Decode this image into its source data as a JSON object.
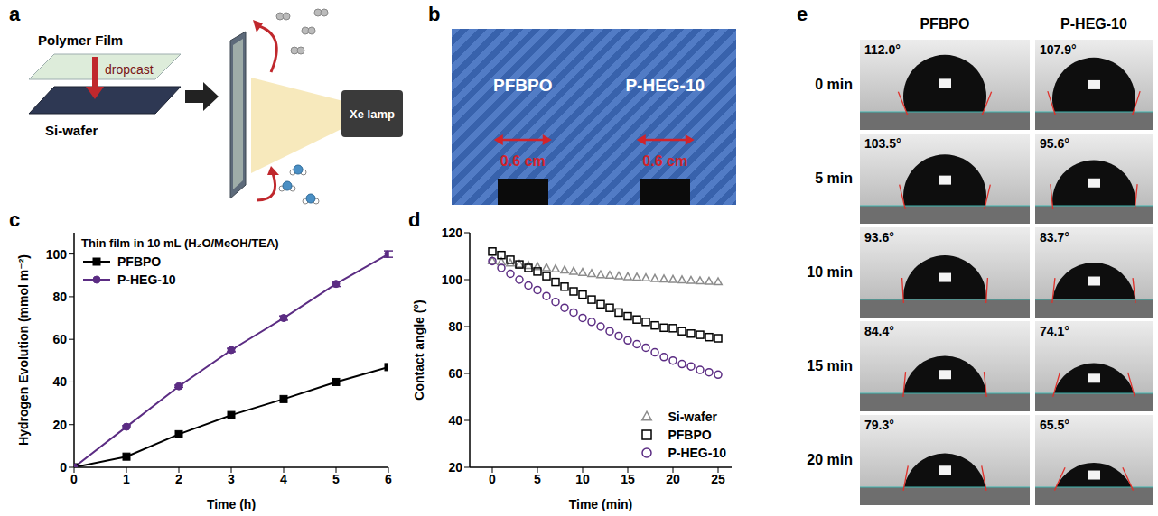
{
  "panel_a": {
    "label": "a",
    "film": "Polymer Film",
    "step": "dropcast",
    "substrate": "Si-wafer",
    "lamp": "Xe lamp"
  },
  "panel_b": {
    "label": "b",
    "samples": [
      {
        "name": "PFBPO",
        "scale_bar": "0.6 cm"
      },
      {
        "name": "P-HEG-10",
        "scale_bar": "0.6 cm"
      }
    ]
  },
  "chart_data": [
    {
      "panel": "c",
      "type": "line",
      "legend_title": "Thin film in 10 mL (H₂O/MeOH/TEA)",
      "x_label": "Time (h)",
      "y_label": "Hydrogen Evolution (mmol m⁻²)",
      "x": [
        0,
        1,
        2,
        3,
        4,
        5,
        6
      ],
      "series": [
        {
          "name": "PFBPO",
          "color": "#000000",
          "marker": "square",
          "values": [
            0,
            5,
            15.5,
            24.5,
            32,
            40,
            47
          ]
        },
        {
          "name": "P-HEG-10",
          "color": "#5b2c83",
          "marker": "circle",
          "values": [
            0,
            19,
            38,
            55,
            70,
            86,
            100
          ],
          "errors": [
            0,
            0.5,
            0.5,
            0.8,
            1,
            1.2,
            1.5
          ]
        }
      ],
      "xlim": [
        0,
        6
      ],
      "xticks": [
        0,
        1,
        2,
        3,
        4,
        5,
        6
      ],
      "ylim": [
        0,
        110
      ],
      "yticks": [
        0,
        20,
        40,
        60,
        80,
        100
      ],
      "grid": false,
      "legend": "upper left"
    },
    {
      "panel": "d",
      "type": "scatter",
      "x_label": "Time (min)",
      "y_label": "Contact angle (°)",
      "x": [
        0,
        1,
        2,
        3,
        4,
        5,
        6,
        7,
        8,
        9,
        10,
        11,
        12,
        13,
        14,
        15,
        16,
        17,
        18,
        19,
        20,
        21,
        22,
        23,
        24,
        25
      ],
      "series": [
        {
          "name": "Si-wafer",
          "color": "#8c8c8c",
          "marker": "triangle_open",
          "values": [
            108,
            107.5,
            107,
            106.5,
            106,
            105.5,
            105,
            104.5,
            104,
            103.5,
            103,
            102.5,
            102,
            101.8,
            101.5,
            101.2,
            101,
            100.7,
            100.4,
            100.2,
            100,
            99.8,
            99.6,
            99.4,
            99.2,
            99
          ]
        },
        {
          "name": "PFBPO",
          "color": "#000000",
          "marker": "square_open",
          "values": [
            112,
            110.5,
            108.5,
            106.5,
            105,
            103.5,
            101.5,
            99,
            97,
            95,
            93.6,
            91.5,
            89.5,
            88,
            86,
            84.4,
            83,
            82,
            80.5,
            79.5,
            79.3,
            78,
            77,
            76.5,
            75.5,
            75
          ]
        },
        {
          "name": "P-HEG-10",
          "color": "#5b2c83",
          "marker": "circle_open",
          "values": [
            107.9,
            105,
            102.5,
            100,
            97.5,
            95.6,
            93,
            90.5,
            88,
            86,
            83.7,
            82,
            80,
            78,
            76,
            74.1,
            72.5,
            71,
            69,
            67,
            65.5,
            64,
            63,
            61.5,
            60.5,
            59.5
          ]
        }
      ],
      "xlim": [
        -2.5,
        26.5
      ],
      "xticks": [
        0,
        5,
        10,
        15,
        20,
        25
      ],
      "ylim": [
        20,
        120
      ],
      "yticks": [
        20,
        40,
        60,
        80,
        100,
        120
      ],
      "grid": false,
      "legend": "lower right"
    }
  ],
  "panel_e": {
    "label": "e",
    "columns": [
      "PFBPO",
      "P-HEG-10"
    ],
    "rows": [
      {
        "time": "0 min",
        "angles": [
          {
            "value": 112.0,
            "label": "112.0°"
          },
          {
            "value": 107.9,
            "label": "107.9°"
          }
        ]
      },
      {
        "time": "5 min",
        "angles": [
          {
            "value": 103.5,
            "label": "103.5°"
          },
          {
            "value": 95.6,
            "label": "95.6°"
          }
        ]
      },
      {
        "time": "10 min",
        "angles": [
          {
            "value": 93.6,
            "label": "93.6°"
          },
          {
            "value": 83.7,
            "label": "83.7°"
          }
        ]
      },
      {
        "time": "15 min",
        "angles": [
          {
            "value": 84.4,
            "label": "84.4°"
          },
          {
            "value": 74.1,
            "label": "74.1°"
          }
        ]
      },
      {
        "time": "20 min",
        "angles": [
          {
            "value": 79.3,
            "label": "79.3°"
          },
          {
            "value": 65.5,
            "label": "65.5°"
          }
        ]
      }
    ]
  }
}
